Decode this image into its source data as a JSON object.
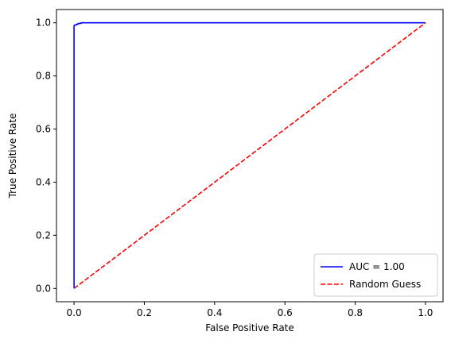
{
  "chart_data": {
    "type": "line",
    "xlabel": "False Positive Rate",
    "ylabel": "True Positive Rate",
    "xlim": [
      -0.05,
      1.05
    ],
    "ylim": [
      -0.05,
      1.05
    ],
    "xticks": [
      0.0,
      0.2,
      0.4,
      0.6,
      0.8,
      1.0
    ],
    "yticks": [
      0.0,
      0.2,
      0.4,
      0.6,
      0.8,
      1.0
    ],
    "xtick_labels": [
      "0.0",
      "0.2",
      "0.4",
      "0.6",
      "0.8",
      "1.0"
    ],
    "ytick_labels": [
      "0.0",
      "0.2",
      "0.4",
      "0.6",
      "0.8",
      "1.0"
    ],
    "grid": false,
    "legend_position": "lower-right",
    "series": [
      {
        "name": "AUC = 1.00",
        "color": "#0000ff",
        "style": "solid",
        "x": [
          0.0,
          0.0,
          0.001,
          0.001,
          0.004,
          0.004,
          0.008,
          0.008,
          0.012,
          0.012,
          0.02,
          0.02,
          1.0
        ],
        "y": [
          0.0,
          0.99,
          0.99,
          0.991,
          0.991,
          0.993,
          0.993,
          0.995,
          0.995,
          0.998,
          0.998,
          1.0,
          1.0
        ]
      },
      {
        "name": "Random Guess",
        "color": "#ff0000",
        "style": "dashed",
        "x": [
          0.0,
          1.0
        ],
        "y": [
          0.0,
          1.0
        ]
      }
    ]
  }
}
